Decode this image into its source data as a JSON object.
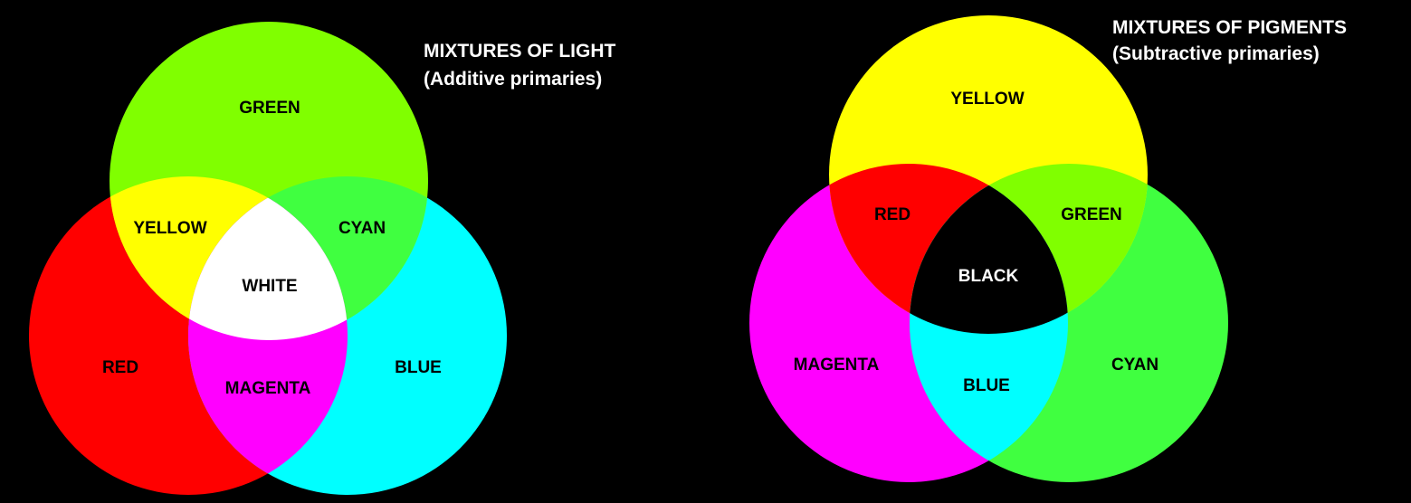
{
  "additive": {
    "title": "MIXTURES OF LIGHT",
    "subtitle": "(Additive primaries)",
    "labels": {
      "green": "GREEN",
      "red": "RED",
      "blue": "BLUE",
      "yellow": "YELLOW",
      "cyan": "CYAN",
      "magenta": "MAGENTA",
      "white": "WHITE"
    },
    "colors": {
      "green": "#80ff00",
      "red": "#ff0000",
      "blue": "#00ffff",
      "yellow": "#ffff00",
      "cyan": "#40ff40",
      "magenta": "#ff00ff",
      "white": "#ffffff"
    }
  },
  "subtractive": {
    "title": "MIXTURES OF PIGMENTS",
    "subtitle": "(Subtractive primaries)",
    "labels": {
      "yellow": "YELLOW",
      "magenta": "MAGENTA",
      "cyan": "CYAN",
      "red": "RED",
      "green": "GREEN",
      "blue": "BLUE",
      "black": "BLACK"
    },
    "colors": {
      "yellow": "#ffff00",
      "magenta": "#ff00ff",
      "cyan": "#40ff40",
      "red": "#ff0000",
      "green": "#80ff00",
      "blue": "#00ffff",
      "black": "#000000"
    }
  }
}
